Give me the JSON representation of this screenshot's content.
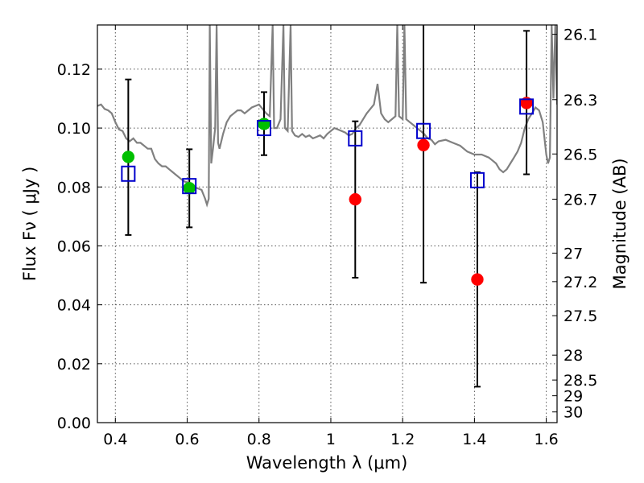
{
  "chart_data": {
    "type": "scatter",
    "title": "",
    "xlabel": "Wavelength  λ (μm)",
    "ylabel": "Flux  Fν  ( μJy )",
    "y2label": "Magnitude (AB)",
    "xlim": [
      0.35,
      1.63
    ],
    "ylim": [
      0.0,
      0.135
    ],
    "grid": true,
    "x_ticks": [
      "0.4",
      "0.6",
      "0.8",
      "1",
      "1.2",
      "1.4",
      "1.6"
    ],
    "x_tick_values": [
      0.4,
      0.6,
      0.8,
      1.0,
      1.2,
      1.4,
      1.6
    ],
    "y_ticks": [
      "0.00",
      "0.02",
      "0.04",
      "0.06",
      "0.08",
      "0.10",
      "0.12"
    ],
    "y_tick_values": [
      0.0,
      0.02,
      0.04,
      0.06,
      0.08,
      0.1,
      0.12
    ],
    "y2_ticks": [
      {
        "label": "26.1",
        "mag": 26.1
      },
      {
        "label": "26.3",
        "mag": 26.3
      },
      {
        "label": "26.5",
        "mag": 26.5
      },
      {
        "label": "26.7",
        "mag": 26.7
      },
      {
        "label": "27",
        "mag": 27.0
      },
      {
        "label": "27.2",
        "mag": 27.2
      },
      {
        "label": "27.5",
        "mag": 27.5
      },
      {
        "label": "28",
        "mag": 28.0
      },
      {
        "label": "28.5",
        "mag": 28.5
      },
      {
        "label": "29",
        "mag": 29.0
      },
      {
        "label": "30",
        "mag": 30.0
      }
    ],
    "colors": {
      "template": "#808080",
      "green": "#00c000",
      "red": "#ff0000",
      "model": "#0000cc",
      "errorbar": "#000000",
      "grid": "#555555"
    },
    "template_spectrum": [
      [
        0.35,
        0.1075
      ],
      [
        0.36,
        0.108
      ],
      [
        0.37,
        0.1065
      ],
      [
        0.38,
        0.106
      ],
      [
        0.39,
        0.105
      ],
      [
        0.4,
        0.102
      ],
      [
        0.41,
        0.0995
      ],
      [
        0.42,
        0.099
      ],
      [
        0.43,
        0.0965
      ],
      [
        0.44,
        0.0955
      ],
      [
        0.45,
        0.0965
      ],
      [
        0.46,
        0.095
      ],
      [
        0.47,
        0.095
      ],
      [
        0.48,
        0.094
      ],
      [
        0.49,
        0.093
      ],
      [
        0.5,
        0.093
      ],
      [
        0.51,
        0.0895
      ],
      [
        0.52,
        0.088
      ],
      [
        0.53,
        0.087
      ],
      [
        0.54,
        0.087
      ],
      [
        0.55,
        0.086
      ],
      [
        0.56,
        0.085
      ],
      [
        0.57,
        0.084
      ],
      [
        0.58,
        0.083
      ],
      [
        0.59,
        0.082
      ],
      [
        0.6,
        0.0815
      ],
      [
        0.61,
        0.081
      ],
      [
        0.62,
        0.08
      ],
      [
        0.63,
        0.0795
      ],
      [
        0.64,
        0.079
      ],
      [
        0.65,
        0.076
      ],
      [
        0.655,
        0.074
      ],
      [
        0.66,
        0.076
      ],
      [
        0.663,
        0.135
      ],
      [
        0.667,
        0.088
      ],
      [
        0.672,
        0.093
      ],
      [
        0.678,
        0.1
      ],
      [
        0.682,
        0.135
      ],
      [
        0.686,
        0.095
      ],
      [
        0.69,
        0.093
      ],
      [
        0.7,
        0.098
      ],
      [
        0.71,
        0.102
      ],
      [
        0.72,
        0.104
      ],
      [
        0.73,
        0.105
      ],
      [
        0.74,
        0.106
      ],
      [
        0.75,
        0.106
      ],
      [
        0.76,
        0.105
      ],
      [
        0.77,
        0.106
      ],
      [
        0.78,
        0.107
      ],
      [
        0.79,
        0.1075
      ],
      [
        0.8,
        0.108
      ],
      [
        0.81,
        0.1065
      ],
      [
        0.82,
        0.105
      ],
      [
        0.83,
        0.104
      ],
      [
        0.838,
        0.135
      ],
      [
        0.842,
        0.1
      ],
      [
        0.85,
        0.1
      ],
      [
        0.86,
        0.103
      ],
      [
        0.868,
        0.135
      ],
      [
        0.872,
        0.1
      ],
      [
        0.88,
        0.099
      ],
      [
        0.888,
        0.135
      ],
      [
        0.892,
        0.099
      ],
      [
        0.9,
        0.0975
      ],
      [
        0.91,
        0.097
      ],
      [
        0.92,
        0.098
      ],
      [
        0.93,
        0.097
      ],
      [
        0.94,
        0.0975
      ],
      [
        0.95,
        0.0965
      ],
      [
        0.96,
        0.097
      ],
      [
        0.97,
        0.0975
      ],
      [
        0.98,
        0.0965
      ],
      [
        0.99,
        0.098
      ],
      [
        1.0,
        0.099
      ],
      [
        1.01,
        0.1
      ],
      [
        1.02,
        0.0995
      ],
      [
        1.03,
        0.099
      ],
      [
        1.04,
        0.0985
      ],
      [
        1.05,
        0.0975
      ],
      [
        1.06,
        0.098
      ],
      [
        1.07,
        0.1
      ],
      [
        1.08,
        0.101
      ],
      [
        1.09,
        0.103
      ],
      [
        1.1,
        0.105
      ],
      [
        1.12,
        0.108
      ],
      [
        1.13,
        0.115
      ],
      [
        1.14,
        0.105
      ],
      [
        1.15,
        0.103
      ],
      [
        1.16,
        0.102
      ],
      [
        1.17,
        0.103
      ],
      [
        1.18,
        0.104
      ],
      [
        1.185,
        0.135
      ],
      [
        1.19,
        0.104
      ],
      [
        1.2,
        0.103
      ],
      [
        1.205,
        0.135
      ],
      [
        1.21,
        0.103
      ],
      [
        1.22,
        0.102
      ],
      [
        1.23,
        0.101
      ],
      [
        1.24,
        0.1
      ],
      [
        1.25,
        0.099
      ],
      [
        1.26,
        0.098
      ],
      [
        1.27,
        0.0965
      ],
      [
        1.28,
        0.096
      ],
      [
        1.29,
        0.0945
      ],
      [
        1.3,
        0.0955
      ],
      [
        1.32,
        0.096
      ],
      [
        1.34,
        0.095
      ],
      [
        1.36,
        0.094
      ],
      [
        1.38,
        0.092
      ],
      [
        1.4,
        0.091
      ],
      [
        1.42,
        0.091
      ],
      [
        1.44,
        0.09
      ],
      [
        1.45,
        0.089
      ],
      [
        1.46,
        0.088
      ],
      [
        1.47,
        0.086
      ],
      [
        1.48,
        0.085
      ],
      [
        1.49,
        0.086
      ],
      [
        1.5,
        0.088
      ],
      [
        1.51,
        0.09
      ],
      [
        1.52,
        0.092
      ],
      [
        1.53,
        0.095
      ],
      [
        1.54,
        0.1
      ],
      [
        1.55,
        0.103
      ],
      [
        1.56,
        0.105
      ],
      [
        1.57,
        0.107
      ],
      [
        1.58,
        0.106
      ],
      [
        1.59,
        0.102
      ],
      [
        1.6,
        0.091
      ],
      [
        1.605,
        0.088
      ],
      [
        1.61,
        0.09
      ],
      [
        1.615,
        0.135
      ],
      [
        1.62,
        0.11
      ],
      [
        1.625,
        0.135
      ],
      [
        1.63,
        0.108
      ]
    ],
    "series": [
      {
        "marker": "circle",
        "color": "green",
        "points": [
          {
            "x": 0.436,
            "y": 0.0902
          },
          {
            "x": 0.606,
            "y": 0.0796
          },
          {
            "x": 0.814,
            "y": 0.1014
          }
        ]
      },
      {
        "marker": "circle",
        "color": "red",
        "points": [
          {
            "x": 1.068,
            "y": 0.0758
          },
          {
            "x": 1.258,
            "y": 0.0942
          },
          {
            "x": 1.408,
            "y": 0.0486
          },
          {
            "x": 1.545,
            "y": 0.1085
          }
        ]
      },
      {
        "marker": "square-open",
        "color": "model",
        "points": [
          {
            "x": 0.436,
            "y": 0.0845
          },
          {
            "x": 0.606,
            "y": 0.0803
          },
          {
            "x": 0.814,
            "y": 0.1
          },
          {
            "x": 1.068,
            "y": 0.0965
          },
          {
            "x": 1.258,
            "y": 0.099
          },
          {
            "x": 1.408,
            "y": 0.0823
          },
          {
            "x": 1.545,
            "y": 0.1073
          }
        ]
      }
    ],
    "error_bars": [
      {
        "x": 0.436,
        "low": 0.0637,
        "high": 0.1165
      },
      {
        "x": 0.606,
        "low": 0.0663,
        "high": 0.0928
      },
      {
        "x": 0.814,
        "low": 0.0908,
        "high": 0.1122
      },
      {
        "x": 1.068,
        "low": 0.0492,
        "high": 0.1023
      },
      {
        "x": 1.258,
        "low": 0.0475,
        "high": 0.141
      },
      {
        "x": 1.408,
        "low": 0.0122,
        "high": 0.085
      },
      {
        "x": 1.545,
        "low": 0.0843,
        "high": 0.133
      }
    ]
  }
}
